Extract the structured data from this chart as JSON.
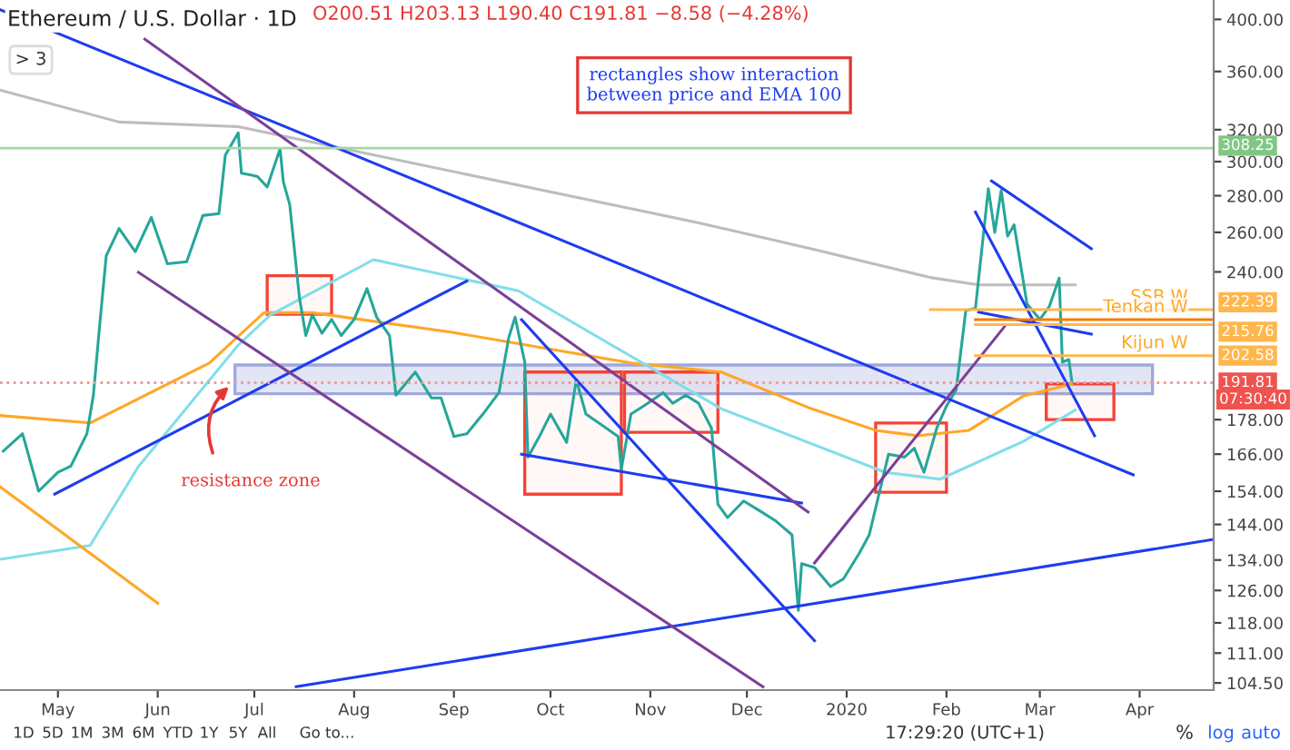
{
  "chart_data": {
    "type": "line",
    "title": "Ethereum / U.S. Dollar · 1D",
    "xlim": [
      "2019-04-13",
      "2020-04-24"
    ],
    "xticks": [
      {
        "value": "2019-05-01",
        "label": "May"
      },
      {
        "value": "2019-06-01",
        "label": "Jun"
      },
      {
        "value": "2019-07-01",
        "label": "Jul"
      },
      {
        "value": "2019-08-01",
        "label": "Aug"
      },
      {
        "value": "2019-09-01",
        "label": "Sep"
      },
      {
        "value": "2019-10-01",
        "label": "Oct"
      },
      {
        "value": "2019-11-01",
        "label": "Nov"
      },
      {
        "value": "2019-12-01",
        "label": "Dec"
      },
      {
        "value": "2020-01-01",
        "label": "2020"
      },
      {
        "value": "2020-02-01",
        "label": "Feb"
      },
      {
        "value": "2020-03-01",
        "label": "Mar"
      },
      {
        "value": "2020-04-01",
        "label": "Apr"
      }
    ],
    "log": "y",
    "ylim": [
      103,
      416
    ],
    "yticks": [
      {
        "value": 104.5,
        "label": "104.50"
      },
      {
        "value": 111,
        "label": "111.00"
      },
      {
        "value": 118,
        "label": "118.00"
      },
      {
        "value": 126,
        "label": "126.00"
      },
      {
        "value": 134,
        "label": "134.00"
      },
      {
        "value": 144,
        "label": "144.00"
      },
      {
        "value": 154,
        "label": "154.00"
      },
      {
        "value": 166,
        "label": "166.00"
      },
      {
        "value": 178,
        "label": "178.00"
      },
      {
        "value": 240,
        "label": "240.00"
      },
      {
        "value": 260,
        "label": "260.00"
      },
      {
        "value": 280,
        "label": "280.00"
      },
      {
        "value": 300,
        "label": "300.00"
      },
      {
        "value": 320,
        "label": "320.00"
      },
      {
        "value": 360,
        "label": "360.00"
      },
      {
        "value": 400,
        "label": "400.00"
      }
    ],
    "grid": false,
    "ref_lines": [
      {
        "axis": "y",
        "value": 308.25,
        "color": "#a5d6a7",
        "line_style": "solid"
      },
      {
        "axis": "y",
        "value": 191.81,
        "color": "#ef9a9a",
        "line_style": "dotted"
      }
    ],
    "series": [
      {
        "type": "area",
        "color": "#9fa8da",
        "x": [
          "2019-06-25",
          "2020-04-05",
          "2020-04-05",
          "2019-06-25",
          "2019-06-25"
        ],
        "values": [
          198.8,
          198.8,
          187.6,
          187.6,
          198.8
        ]
      },
      {
        "type": "line",
        "color": "#bdbdbd",
        "x": [
          "2019-04-13",
          "2019-05-20",
          "2019-06-26",
          "2019-10-31",
          "2019-11-17",
          "2019-12-21",
          "2020-01-27",
          "2020-02-11",
          "2020-03-12"
        ],
        "values": [
          346.7,
          325,
          322,
          270.9,
          264.7,
          251.5,
          237.3,
          233.8,
          233.8
        ]
      },
      {
        "type": "line",
        "color": "#ffa726",
        "x": [
          "2019-04-13",
          "2019-05-11",
          "2019-06-17",
          "2019-07-04",
          "2019-07-19",
          "2019-08-31",
          "2019-10-26",
          "2019-11-23",
          "2019-12-21",
          "2020-01-10",
          "2020-01-23",
          "2020-02-08",
          "2020-02-25",
          "2020-03-11"
        ],
        "values": [
          179.5,
          176.8,
          199.6,
          221,
          221,
          212.5,
          199.6,
          196,
          182,
          174.2,
          172.3,
          174.2,
          186.8,
          191.3
        ]
      },
      {
        "type": "line",
        "color": "#80deea",
        "x": [
          "2019-04-13",
          "2019-05-11",
          "2019-05-26",
          "2019-06-26",
          "2019-07-06",
          "2019-08-07",
          "2019-09-21",
          "2019-11-23",
          "2020-01-13",
          "2020-01-30",
          "2020-02-25",
          "2020-03-12"
        ],
        "values": [
          134.2,
          138,
          161.9,
          207,
          220,
          246,
          231,
          182,
          160,
          157.8,
          170.4,
          181.5
        ]
      },
      {
        "color": "#26a69a",
        "x": [
          "2019-04-14",
          "2019-04-20",
          "2019-04-25",
          "2019-05-01",
          "2019-05-05",
          "2019-05-10",
          "2019-05-12",
          "2019-05-14",
          "2019-05-16",
          "2019-05-20",
          "2019-05-25",
          "2019-05-30",
          "2019-06-04",
          "2019-06-10",
          "2019-06-15",
          "2019-06-20",
          "2019-06-22",
          "2019-06-26",
          "2019-06-27",
          "2019-06-30",
          "2019-07-02",
          "2019-07-05",
          "2019-07-09",
          "2019-07-10",
          "2019-07-12",
          "2019-07-15",
          "2019-07-17",
          "2019-07-19",
          "2019-07-22",
          "2019-07-25",
          "2019-07-28",
          "2019-08-01",
          "2019-08-05",
          "2019-08-08",
          "2019-08-12",
          "2019-08-14",
          "2019-08-20",
          "2019-08-25",
          "2019-08-28",
          "2019-09-01",
          "2019-09-05",
          "2019-09-10",
          "2019-09-15",
          "2019-09-18",
          "2019-09-20",
          "2019-09-23",
          "2019-09-24",
          "2019-09-28",
          "2019-10-01",
          "2019-10-06",
          "2019-10-09",
          "2019-10-12",
          "2019-10-17",
          "2019-10-22",
          "2019-10-23",
          "2019-10-26",
          "2019-10-30",
          "2019-11-05",
          "2019-11-08",
          "2019-11-12",
          "2019-11-16",
          "2019-11-20",
          "2019-11-22",
          "2019-11-25",
          "2019-11-30",
          "2019-12-05",
          "2019-12-10",
          "2019-12-15",
          "2019-12-17",
          "2019-12-18",
          "2019-12-22",
          "2019-12-27",
          "2019-12-31",
          "2020-01-05",
          "2020-01-08",
          "2020-01-14",
          "2020-01-19",
          "2020-01-22",
          "2020-01-25",
          "2020-01-29",
          "2020-02-01",
          "2020-02-04",
          "2020-02-07",
          "2020-02-10",
          "2020-02-14",
          "2020-02-16",
          "2020-02-18",
          "2020-02-20",
          "2020-02-22",
          "2020-02-26",
          "2020-03-01",
          "2020-03-04",
          "2020-03-07",
          "2020-03-08",
          "2020-03-10",
          "2020-03-11"
        ],
        "values": [
          167,
          173,
          154,
          160,
          162,
          173,
          187,
          216,
          248,
          262,
          250,
          268,
          244,
          245,
          269,
          270,
          304,
          318,
          293,
          292,
          291,
          285,
          308,
          288,
          275,
          228,
          211,
          220,
          212,
          218,
          211,
          218,
          232,
          219,
          211,
          187,
          196,
          186,
          186,
          172,
          173,
          180,
          188,
          210,
          219,
          200,
          165,
          173,
          180,
          170,
          193,
          180,
          176,
          172,
          161,
          180,
          183,
          188,
          184,
          187,
          184,
          175,
          150,
          146,
          151,
          148,
          145,
          141,
          121,
          133,
          132,
          127,
          129,
          136,
          141,
          166,
          165,
          168,
          160,
          175,
          183,
          189,
          222,
          223,
          284,
          260,
          283,
          258,
          264,
          225,
          218,
          224,
          237,
          200,
          201,
          191.81
        ]
      },
      {
        "type": "line",
        "color": "#1e3cf0",
        "x": [
          "2019-04-13",
          "2020-03-30"
        ],
        "values": [
          408,
          159.2
        ]
      },
      {
        "type": "line",
        "color": "#1e3cf0",
        "x": [
          "2019-07-14",
          "2020-04-24"
        ],
        "values": [
          103.7,
          139.7
        ]
      },
      {
        "type": "line",
        "color": "#1e3cf0",
        "x": [
          "2019-04-30",
          "2019-09-05"
        ],
        "values": [
          153.1,
          235.6
        ]
      },
      {
        "type": "line",
        "color": "#1e3cf0",
        "x": [
          "2019-09-22",
          "2019-12-22"
        ],
        "values": [
          217.9,
          113.8
        ]
      },
      {
        "type": "line",
        "color": "#1e3cf0",
        "x": [
          "2019-09-22",
          "2019-12-18"
        ],
        "values": [
          166,
          150.4
        ]
      },
      {
        "type": "line",
        "color": "#1e3cf0",
        "x": [
          "2020-02-10",
          "2020-03-18"
        ],
        "values": [
          270.9,
          172.3
        ]
      },
      {
        "type": "line",
        "color": "#1e3cf0",
        "x": [
          "2020-02-15",
          "2020-03-17"
        ],
        "values": [
          288.5,
          251.5
        ]
      },
      {
        "type": "line",
        "color": "#1e3cf0",
        "x": [
          "2020-02-11",
          "2020-03-17"
        ],
        "values": [
          221.2,
          211.6
        ]
      },
      {
        "type": "line",
        "color": "#7b3f98",
        "x": [
          "2019-05-28",
          "2019-12-20"
        ],
        "values": [
          384.3,
          147.7
        ]
      },
      {
        "type": "line",
        "color": "#7b3f98",
        "x": [
          "2019-05-26",
          "2019-12-06"
        ],
        "values": [
          239.8,
          103.7
        ]
      },
      {
        "type": "line",
        "color": "#7b3f98",
        "x": [
          "2019-12-22",
          "2020-02-19"
        ],
        "values": [
          133.2,
          214.8
        ]
      },
      {
        "type": "line",
        "color": "#ffa726",
        "x": [
          "2019-04-13",
          "2019-06-01"
        ],
        "values": [
          155.4,
          122.8
        ]
      },
      {
        "type": "line",
        "color": "#ffb74d",
        "x": [
          "2020-01-27",
          "2020-04-24"
        ],
        "values": [
          222.39,
          222.39
        ]
      },
      {
        "type": "line",
        "color": "#f57c00",
        "x": [
          "2020-02-10",
          "2020-04-24"
        ],
        "values": [
          217.9,
          217.9
        ]
      },
      {
        "type": "line",
        "color": "#ffb74d",
        "x": [
          "2020-02-10",
          "2020-04-24"
        ],
        "values": [
          215.76,
          215.76
        ]
      },
      {
        "type": "line",
        "color": "#ffb74d",
        "x": [
          "2020-02-10",
          "2020-04-24"
        ],
        "values": [
          202.58,
          202.58
        ]
      },
      {
        "type": "area",
        "color": "#f44336",
        "x": [
          "2019-07-05",
          "2019-07-25",
          "2019-07-25",
          "2019-07-05",
          "2019-07-05"
        ],
        "values": [
          238.2,
          238.2,
          220.3,
          220.3,
          238.2
        ]
      },
      {
        "type": "area",
        "color": "#f44336",
        "x": [
          "2019-09-23",
          "2019-10-23",
          "2019-10-23",
          "2019-09-23",
          "2019-09-23"
        ],
        "values": [
          196,
          196,
          153.1,
          153.1,
          196
        ]
      },
      {
        "type": "area",
        "color": "#f44336",
        "x": [
          "2019-10-24",
          "2019-11-22",
          "2019-11-22",
          "2019-10-24",
          "2019-10-24"
        ],
        "values": [
          196,
          196,
          173.5,
          173.5,
          196
        ]
      },
      {
        "type": "area",
        "color": "#f44336",
        "x": [
          "2020-01-10",
          "2020-02-01",
          "2020-02-01",
          "2020-01-10",
          "2020-01-10"
        ],
        "values": [
          176.8,
          176.8,
          153.7,
          153.7,
          176.8
        ]
      },
      {
        "type": "area",
        "color": "#f44336",
        "x": [
          "2020-03-03",
          "2020-03-24",
          "2020-03-24",
          "2020-03-03",
          "2020-03-03"
        ],
        "values": [
          191.3,
          191.3,
          178,
          178,
          191.3
        ]
      }
    ],
    "annotations": [
      "O200.51 H203.13 L190.40 C191.81 −8.58 (−4.28%)",
      "> 3",
      "rectangles show interaction\nbetween price and EMA 100",
      "resistance zone",
      "1D",
      "5D",
      "1M",
      "3M",
      "6M",
      "YTD",
      "1Y",
      "5Y",
      "All",
      "Go to...",
      "17:29:20 (UTC+1)",
      "%",
      "log",
      "auto",
      {
        "text": "SSB W",
        "x": "2020-04-16",
        "y": 222.39
      },
      {
        "text": "Tenkan W",
        "x": "2020-04-16",
        "y": 217.9
      },
      {
        "text": "Kijun W",
        "x": "2020-04-16",
        "y": 202.58
      },
      {
        "text": "308.25",
        "x": "2020-04-24",
        "y": 308.25
      },
      {
        "text": "222.39",
        "x": "2020-04-24",
        "y": 222.39
      },
      {
        "text": "215.76",
        "x": "2020-04-24",
        "y": 215.76
      },
      {
        "text": "202.58",
        "x": "2020-04-24",
        "y": 202.58
      },
      {
        "text": "191.81",
        "x": "2020-04-24",
        "y": 191.81
      },
      "07:30:40"
    ]
  }
}
